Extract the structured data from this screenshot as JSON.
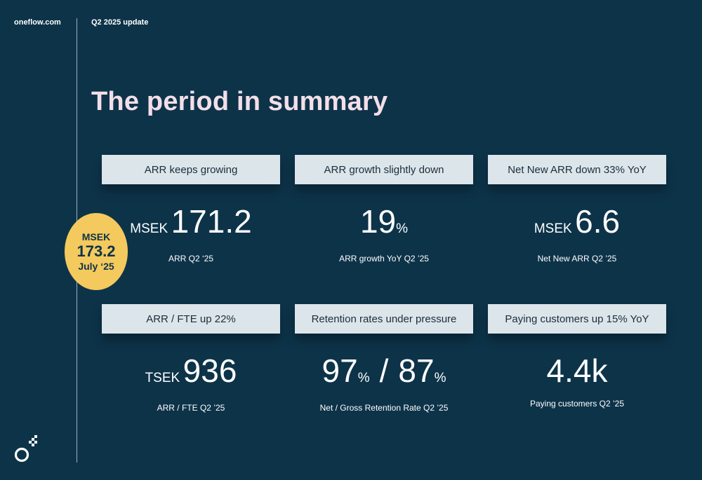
{
  "header": {
    "site": "oneflow.com",
    "period": "Q2 2025 update"
  },
  "title": "The period in summary",
  "badge": {
    "unit": "MSEK",
    "value": "173.2",
    "date": "July ‘25"
  },
  "cards": [
    {
      "heading": "ARR keeps growing",
      "unit": "MSEK",
      "value": "171.2",
      "caption": "ARR Q2 ‘25"
    },
    {
      "heading": "ARR growth slightly down",
      "value": "19",
      "suffix": "%",
      "caption": "ARR growth YoY Q2 ’25"
    },
    {
      "heading": "Net New ARR down 33% YoY",
      "unit": "MSEK",
      "value": "6.6",
      "caption": "Net New ARR Q2 ’25"
    },
    {
      "heading": "ARR / FTE up 22%",
      "unit": "TSEK",
      "value": "936",
      "caption": "ARR / FTE Q2 ’25"
    },
    {
      "heading": "Retention rates under pressure",
      "value": "97",
      "suffix": "%",
      "separator": "/",
      "value2": "87",
      "suffix2": "%",
      "caption": "Net / Gross Retention Rate Q2 ’25"
    },
    {
      "heading": "Paying customers up 15% YoY",
      "value": "4.4k",
      "caption": "Paying customers Q2 ’25"
    }
  ],
  "colors": {
    "background": "#0d3349",
    "title": "#f3dfe8",
    "card": "#dce5ea",
    "badge": "#f4c95d"
  },
  "icons": {
    "logo": "oneflow-logo-icon"
  }
}
